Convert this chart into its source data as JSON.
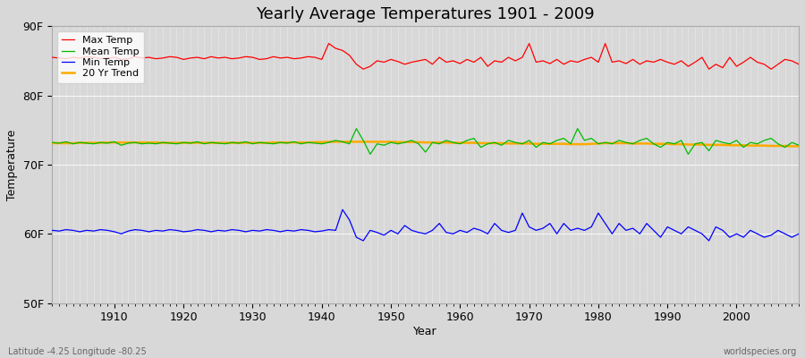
{
  "title": "Yearly Average Temperatures 1901 - 2009",
  "xlabel": "Year",
  "ylabel": "Temperature",
  "lat_lon_label": "Latitude -4.25 Longitude -80.25",
  "watermark": "worldspecies.org",
  "years_start": 1901,
  "years_end": 2009,
  "ylim": [
    50,
    90
  ],
  "yticks": [
    50,
    60,
    70,
    80,
    90
  ],
  "ytick_labels": [
    "50F",
    "60F",
    "70F",
    "80F",
    "90F"
  ],
  "xticks": [
    1910,
    1920,
    1930,
    1940,
    1950,
    1960,
    1970,
    1980,
    1990,
    2000
  ],
  "xlim_left": 1901,
  "xlim_right": 2009,
  "bg_color": "#d8d8d8",
  "plot_bg_color": "#d8d8d8",
  "grid_color": "#ffffff",
  "max_temp_color": "#ff0000",
  "mean_temp_color": "#00bb00",
  "min_temp_color": "#0000ff",
  "trend_color": "#ffaa00",
  "legend_labels": [
    "Max Temp",
    "Mean Temp",
    "Min Temp",
    "20 Yr Trend"
  ],
  "max_temp": [
    85.5,
    85.4,
    85.3,
    85.5,
    85.4,
    85.6,
    85.5,
    85.3,
    85.4,
    85.5,
    85.2,
    85.3,
    85.6,
    85.4,
    85.5,
    85.3,
    85.4,
    85.6,
    85.5,
    85.2,
    85.4,
    85.5,
    85.3,
    85.6,
    85.4,
    85.5,
    85.3,
    85.4,
    85.6,
    85.5,
    85.2,
    85.3,
    85.6,
    85.4,
    85.5,
    85.3,
    85.4,
    85.6,
    85.5,
    85.2,
    87.5,
    86.8,
    86.5,
    85.8,
    84.5,
    83.8,
    84.2,
    85.0,
    84.8,
    85.2,
    84.9,
    84.5,
    84.8,
    85.0,
    85.2,
    84.5,
    85.5,
    84.8,
    85.0,
    84.6,
    85.2,
    84.8,
    85.5,
    84.2,
    85.0,
    84.8,
    85.5,
    85.0,
    85.5,
    87.5,
    84.8,
    85.0,
    84.6,
    85.2,
    84.5,
    85.0,
    84.8,
    85.2,
    85.5,
    84.8,
    87.5,
    84.8,
    85.0,
    84.6,
    85.2,
    84.5,
    85.0,
    84.8,
    85.2,
    84.8,
    84.5,
    85.0,
    84.2,
    84.8,
    85.5,
    83.8,
    84.5,
    84.0,
    85.5,
    84.2,
    84.8,
    85.5,
    84.8,
    84.5,
    83.8,
    84.5,
    85.2,
    85.0,
    84.5
  ],
  "mean_temp": [
    73.2,
    73.1,
    73.3,
    73.0,
    73.2,
    73.1,
    73.0,
    73.2,
    73.1,
    73.3,
    72.8,
    73.1,
    73.2,
    73.0,
    73.1,
    73.0,
    73.2,
    73.1,
    73.0,
    73.2,
    73.1,
    73.3,
    73.0,
    73.2,
    73.1,
    73.0,
    73.2,
    73.1,
    73.3,
    73.0,
    73.2,
    73.1,
    73.0,
    73.2,
    73.1,
    73.3,
    73.0,
    73.2,
    73.1,
    73.0,
    73.2,
    73.5,
    73.3,
    73.0,
    75.2,
    73.5,
    71.5,
    73.0,
    72.8,
    73.2,
    73.0,
    73.2,
    73.5,
    73.0,
    71.8,
    73.2,
    73.0,
    73.5,
    73.2,
    73.0,
    73.5,
    73.8,
    72.5,
    73.0,
    73.2,
    72.8,
    73.5,
    73.2,
    73.0,
    73.5,
    72.5,
    73.2,
    73.0,
    73.5,
    73.8,
    73.0,
    75.2,
    73.5,
    73.8,
    73.0,
    73.2,
    73.0,
    73.5,
    73.2,
    73.0,
    73.5,
    73.8,
    73.0,
    72.5,
    73.2,
    73.0,
    73.5,
    71.5,
    73.0,
    73.2,
    72.0,
    73.5,
    73.2,
    73.0,
    73.5,
    72.5,
    73.2,
    73.0,
    73.5,
    73.8,
    73.0,
    72.5,
    73.2,
    72.8
  ],
  "min_temp": [
    60.5,
    60.4,
    60.6,
    60.5,
    60.3,
    60.5,
    60.4,
    60.6,
    60.5,
    60.3,
    60.0,
    60.4,
    60.6,
    60.5,
    60.3,
    60.5,
    60.4,
    60.6,
    60.5,
    60.3,
    60.4,
    60.6,
    60.5,
    60.3,
    60.5,
    60.4,
    60.6,
    60.5,
    60.3,
    60.5,
    60.4,
    60.6,
    60.5,
    60.3,
    60.5,
    60.4,
    60.6,
    60.5,
    60.3,
    60.4,
    60.6,
    60.5,
    63.5,
    62.0,
    59.5,
    59.0,
    60.5,
    60.2,
    59.8,
    60.5,
    60.0,
    61.2,
    60.5,
    60.2,
    60.0,
    60.5,
    61.5,
    60.2,
    60.0,
    60.5,
    60.2,
    60.8,
    60.5,
    60.0,
    61.5,
    60.5,
    60.2,
    60.5,
    63.0,
    61.0,
    60.5,
    60.8,
    61.5,
    60.0,
    61.5,
    60.5,
    60.8,
    60.5,
    61.0,
    63.0,
    61.5,
    60.0,
    61.5,
    60.5,
    60.8,
    60.0,
    61.5,
    60.5,
    59.5,
    61.0,
    60.5,
    60.0,
    61.0,
    60.5,
    60.0,
    59.0,
    61.0,
    60.5,
    59.5,
    60.0,
    59.5,
    60.5,
    60.0,
    59.5,
    59.8,
    60.5,
    60.0,
    59.5,
    60.0
  ],
  "trend": [
    73.1,
    73.1,
    73.1,
    73.1,
    73.15,
    73.15,
    73.15,
    73.15,
    73.2,
    73.2,
    73.2,
    73.2,
    73.2,
    73.2,
    73.2,
    73.2,
    73.15,
    73.15,
    73.15,
    73.15,
    73.15,
    73.15,
    73.15,
    73.15,
    73.15,
    73.15,
    73.15,
    73.15,
    73.15,
    73.15,
    73.15,
    73.15,
    73.2,
    73.2,
    73.2,
    73.2,
    73.2,
    73.2,
    73.25,
    73.25,
    73.3,
    73.3,
    73.3,
    73.3,
    73.3,
    73.3,
    73.3,
    73.3,
    73.3,
    73.3,
    73.25,
    73.25,
    73.25,
    73.25,
    73.2,
    73.2,
    73.2,
    73.2,
    73.15,
    73.15,
    73.15,
    73.15,
    73.1,
    73.1,
    73.1,
    73.1,
    73.05,
    73.05,
    73.05,
    73.05,
    73.0,
    73.0,
    73.0,
    73.0,
    73.0,
    72.95,
    72.95,
    72.95,
    73.0,
    73.05,
    73.1,
    73.1,
    73.1,
    73.1,
    73.05,
    73.05,
    73.05,
    73.0,
    73.0,
    73.0,
    72.95,
    72.95,
    72.9,
    72.9,
    72.9,
    72.85,
    72.85,
    72.85,
    72.8,
    72.8,
    72.8,
    72.75,
    72.75,
    72.75,
    72.7,
    72.7,
    72.7,
    72.65,
    72.65
  ]
}
